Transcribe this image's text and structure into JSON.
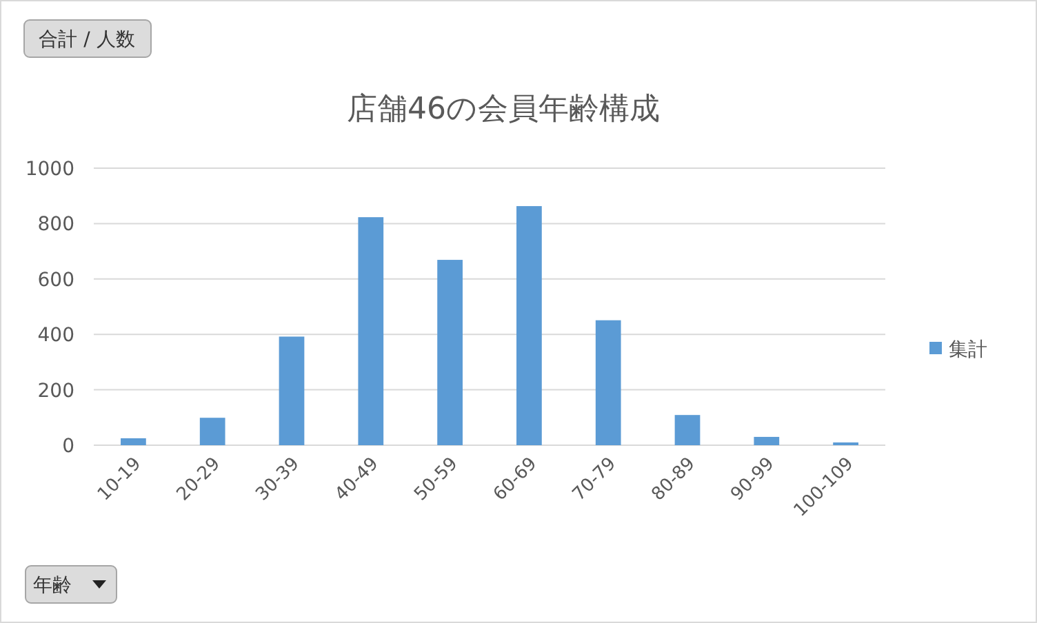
{
  "chart_data": {
    "type": "bar",
    "title": "店舗46の会員年齢構成",
    "categories": [
      "10-19",
      "20-29",
      "30-39",
      "40-49",
      "50-59",
      "60-69",
      "70-79",
      "80-89",
      "90-99",
      "100-109"
    ],
    "series": [
      {
        "name": "集計",
        "color": "#5b9bd5",
        "values": [
          25,
          99,
          392,
          823,
          669,
          863,
          451,
          109,
          30,
          10
        ]
      }
    ],
    "ylim": [
      0,
      1000
    ],
    "yticks": [
      0,
      200,
      400,
      600,
      800,
      1000
    ],
    "grid": "y",
    "legend": "right",
    "annotations": [
      "合計 / 人数",
      "年齢"
    ]
  }
}
